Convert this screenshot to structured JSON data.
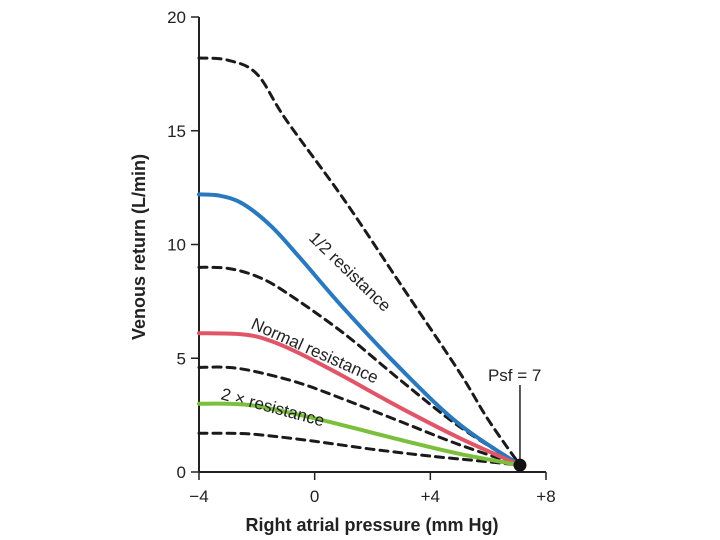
{
  "chart_data": {
    "type": "line",
    "title": "",
    "xlabel": "Right atrial pressure (mm Hg)",
    "ylabel": "Venous return (L/min)",
    "xlim": [
      -4,
      8
    ],
    "ylim": [
      0,
      20
    ],
    "x_ticks": [
      {
        "value": -4,
        "label": "−4"
      },
      {
        "value": 0,
        "label": "0"
      },
      {
        "value": 4,
        "label": "+4"
      },
      {
        "value": 8,
        "label": "+8"
      }
    ],
    "y_ticks": [
      {
        "value": 0,
        "label": "0"
      },
      {
        "value": 5,
        "label": "5"
      },
      {
        "value": 10,
        "label": "10"
      },
      {
        "value": 15,
        "label": "15"
      },
      {
        "value": 20,
        "label": "20"
      }
    ],
    "series": [
      {
        "name": "dashed-top",
        "style": "dashed",
        "color": "#1a1a1a",
        "points": [
          [
            -4,
            18.2
          ],
          [
            -3.0,
            18.1
          ],
          [
            -2.0,
            17.5
          ],
          [
            -1.0,
            15.5
          ],
          [
            1,
            12.0
          ],
          [
            3,
            8.2
          ],
          [
            5,
            4.4
          ],
          [
            6,
            2.3
          ],
          [
            7.1,
            0.3
          ]
        ]
      },
      {
        "name": "1/2 resistance",
        "style": "solid",
        "color": "#2a78bd",
        "points": [
          [
            -4,
            12.2
          ],
          [
            -3.3,
            12.15
          ],
          [
            -2.5,
            11.8
          ],
          [
            -1.5,
            10.8
          ],
          [
            -0.5,
            9.4
          ],
          [
            1,
            7.2
          ],
          [
            3,
            4.5
          ],
          [
            5,
            2.1
          ],
          [
            7.1,
            0.3
          ]
        ]
      },
      {
        "name": "dashed-middle",
        "style": "dashed",
        "color": "#1a1a1a",
        "points": [
          [
            -4,
            9.0
          ],
          [
            -3.0,
            8.95
          ],
          [
            -2.0,
            8.6
          ],
          [
            -1.0,
            7.9
          ],
          [
            1,
            6.1
          ],
          [
            3,
            4.0
          ],
          [
            5,
            2.0
          ],
          [
            7.1,
            0.3
          ]
        ]
      },
      {
        "name": "Normal resistance",
        "style": "solid",
        "color": "#e05567",
        "points": [
          [
            -4,
            6.1
          ],
          [
            -2.5,
            6.05
          ],
          [
            -1.6,
            5.8
          ],
          [
            -0.5,
            5.2
          ],
          [
            1,
            4.2
          ],
          [
            3,
            2.8
          ],
          [
            5,
            1.5
          ],
          [
            7.1,
            0.3
          ]
        ]
      },
      {
        "name": "dashed-lower",
        "style": "dashed",
        "color": "#1a1a1a",
        "points": [
          [
            -4,
            4.6
          ],
          [
            -3.0,
            4.6
          ],
          [
            -2.0,
            4.4
          ],
          [
            -0.5,
            3.9
          ],
          [
            1,
            3.2
          ],
          [
            3,
            2.2
          ],
          [
            5,
            1.2
          ],
          [
            7.1,
            0.3
          ]
        ]
      },
      {
        "name": "2 × resistance",
        "style": "solid",
        "color": "#7bbf3d",
        "points": [
          [
            -4,
            3.0
          ],
          [
            -3.0,
            3.0
          ],
          [
            -2.0,
            2.9
          ],
          [
            -0.5,
            2.5
          ],
          [
            1,
            2.05
          ],
          [
            3,
            1.4
          ],
          [
            5,
            0.8
          ],
          [
            7.1,
            0.3
          ]
        ]
      },
      {
        "name": "dashed-bottom",
        "style": "dashed",
        "color": "#1a1a1a",
        "points": [
          [
            -4,
            1.7
          ],
          [
            -3.0,
            1.7
          ],
          [
            -2.0,
            1.65
          ],
          [
            0,
            1.35
          ],
          [
            2,
            1.0
          ],
          [
            4,
            0.7
          ],
          [
            6,
            0.45
          ],
          [
            7.1,
            0.3
          ]
        ]
      }
    ],
    "annotations": {
      "psf_label": "Psf = 7",
      "psf_value": 7,
      "label_half": "1/2 resistance",
      "label_normal": "Normal resistance",
      "label_double": "2 × resistance"
    }
  }
}
